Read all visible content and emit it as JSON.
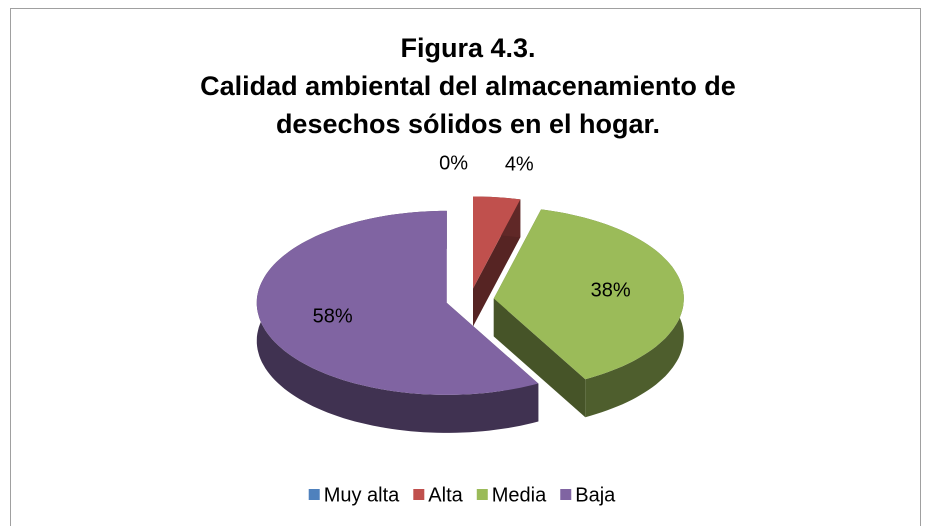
{
  "chart_data": {
    "type": "pie3d",
    "title": [
      "Figura 4.3.",
      "Calidad ambiental del almacenamiento de",
      "desechos sólidos en el hogar."
    ],
    "categories": [
      "Muy alta",
      "Alta",
      "Media",
      "Baja"
    ],
    "values": [
      0,
      4,
      38,
      58
    ],
    "value_labels": [
      "0%",
      "4%",
      "38%",
      "58%"
    ],
    "colors": [
      "#4f81bd",
      "#c0504d",
      "#9bbb59",
      "#8064a2"
    ],
    "legend": "bottom"
  }
}
